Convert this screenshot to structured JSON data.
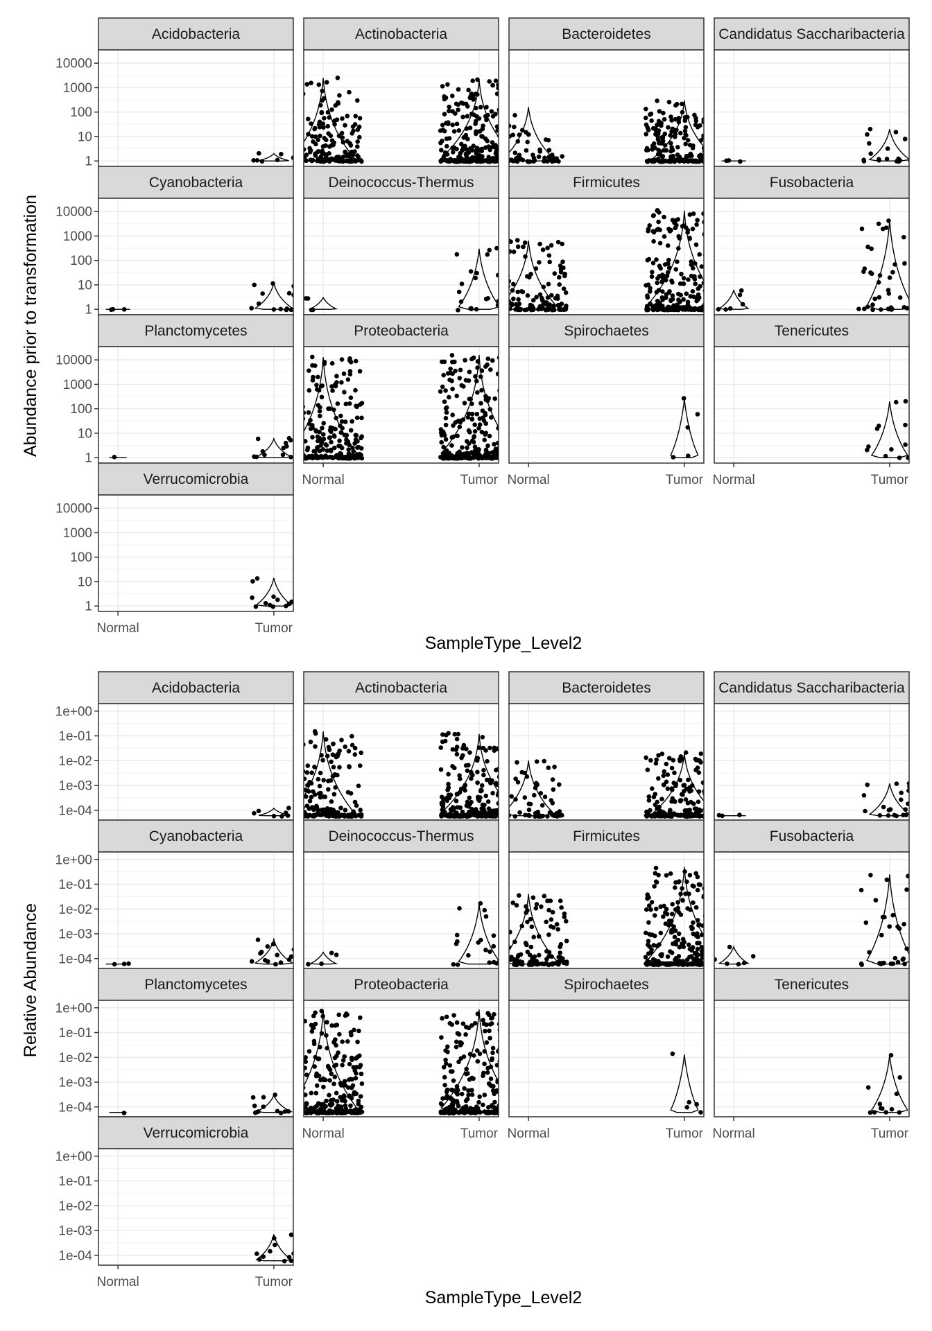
{
  "chart_data": [
    {
      "type": "violin",
      "ylabel": "Abundance prior to transformation",
      "xlabel": "SampleType_Level2",
      "y_scale": "log10",
      "y_ticks": [
        "1",
        "10",
        "100",
        "1000",
        "10000"
      ],
      "ylim": [
        0.6,
        35000
      ],
      "categories": [
        "Normal",
        "Tumor"
      ],
      "grid": true,
      "point_size_note": "jittered points with violin outlines",
      "panels": [
        {
          "name": "Acidobacteria",
          "Normal": null,
          "Tumor": {
            "min": 1,
            "max": 2,
            "n": 7
          }
        },
        {
          "name": "Actinobacteria",
          "Normal": {
            "min": 1,
            "max": 2500,
            "n": 220
          },
          "Tumor": {
            "min": 1,
            "max": 2200,
            "n": 900
          }
        },
        {
          "name": "Bacteroidetes",
          "Normal": {
            "min": 1,
            "max": 160,
            "n": 70
          },
          "Tumor": {
            "min": 1,
            "max": 300,
            "n": 260
          }
        },
        {
          "name": "Candidatus Saccharibacteria",
          "Normal": {
            "min": 1,
            "max": 1,
            "n": 3
          },
          "Tumor": {
            "min": 1,
            "max": 20,
            "n": 22
          }
        },
        {
          "name": "Cyanobacteria",
          "Normal": {
            "min": 1,
            "max": 1,
            "n": 3
          },
          "Tumor": {
            "min": 1,
            "max": 12,
            "n": 16
          }
        },
        {
          "name": "Deinococcus-Thermus",
          "Normal": {
            "min": 1,
            "max": 3,
            "n": 4
          },
          "Tumor": {
            "min": 1,
            "max": 300,
            "n": 24
          }
        },
        {
          "name": "Firmicutes",
          "Normal": {
            "min": 1,
            "max": 650,
            "n": 140
          },
          "Tumor": {
            "min": 1,
            "max": 11000,
            "n": 850
          }
        },
        {
          "name": "Fusobacteria",
          "Normal": {
            "min": 1,
            "max": 6,
            "n": 6
          },
          "Tumor": {
            "min": 1,
            "max": 4500,
            "n": 40
          }
        },
        {
          "name": "Planctomycetes",
          "Normal": {
            "min": 1,
            "max": 1,
            "n": 1
          },
          "Tumor": {
            "min": 1,
            "max": 6,
            "n": 12
          }
        },
        {
          "name": "Proteobacteria",
          "Normal": {
            "min": 1,
            "max": 13000,
            "n": 420
          },
          "Tumor": {
            "min": 1,
            "max": 16000,
            "n": 1400
          }
        },
        {
          "name": "Spirochaetes",
          "Normal": null,
          "Tumor": {
            "min": 1,
            "max": 250,
            "n": 5
          }
        },
        {
          "name": "Tenericutes",
          "Normal": null,
          "Tumor": {
            "min": 1,
            "max": 200,
            "n": 14
          }
        },
        {
          "name": "Verrucomicrobia",
          "Normal": null,
          "Tumor": {
            "min": 1,
            "max": 14,
            "n": 12
          }
        }
      ]
    },
    {
      "type": "violin",
      "ylabel": "Relative Abundance",
      "xlabel": "SampleType_Level2",
      "y_scale": "log10",
      "y_ticks": [
        "1e-04",
        "1e-03",
        "1e-02",
        "1e-01",
        "1e+00"
      ],
      "ylim": [
        4e-05,
        2
      ],
      "categories": [
        "Normal",
        "Tumor"
      ],
      "grid": true,
      "panels": [
        {
          "name": "Acidobacteria",
          "Normal": null,
          "Tumor": {
            "min": 6e-05,
            "max": 0.00012,
            "n": 7
          }
        },
        {
          "name": "Actinobacteria",
          "Normal": {
            "min": 6e-05,
            "max": 0.15,
            "n": 220
          },
          "Tumor": {
            "min": 6e-05,
            "max": 0.12,
            "n": 900
          }
        },
        {
          "name": "Bacteroidetes",
          "Normal": {
            "min": 6e-05,
            "max": 0.01,
            "n": 70
          },
          "Tumor": {
            "min": 6e-05,
            "max": 0.02,
            "n": 260
          }
        },
        {
          "name": "Candidatus Saccharibacteria",
          "Normal": {
            "min": 6e-05,
            "max": 6e-05,
            "n": 3
          },
          "Tumor": {
            "min": 6e-05,
            "max": 0.0012,
            "n": 22
          }
        },
        {
          "name": "Cyanobacteria",
          "Normal": {
            "min": 6e-05,
            "max": 6e-05,
            "n": 3
          },
          "Tumor": {
            "min": 6e-05,
            "max": 0.0006,
            "n": 16
          }
        },
        {
          "name": "Deinococcus-Thermus",
          "Normal": {
            "min": 6e-05,
            "max": 0.00018,
            "n": 4
          },
          "Tumor": {
            "min": 6e-05,
            "max": 0.016,
            "n": 24
          }
        },
        {
          "name": "Firmicutes",
          "Normal": {
            "min": 6e-05,
            "max": 0.04,
            "n": 140
          },
          "Tumor": {
            "min": 6e-05,
            "max": 0.5,
            "n": 850
          }
        },
        {
          "name": "Fusobacteria",
          "Normal": {
            "min": 6e-05,
            "max": 0.0003,
            "n": 6
          },
          "Tumor": {
            "min": 6e-05,
            "max": 0.25,
            "n": 40
          }
        },
        {
          "name": "Planctomycetes",
          "Normal": {
            "min": 6e-05,
            "max": 6e-05,
            "n": 1
          },
          "Tumor": {
            "min": 6e-05,
            "max": 0.0003,
            "n": 12
          }
        },
        {
          "name": "Proteobacteria",
          "Normal": {
            "min": 6e-05,
            "max": 0.8,
            "n": 420
          },
          "Tumor": {
            "min": 6e-05,
            "max": 0.85,
            "n": 1400
          }
        },
        {
          "name": "Spirochaetes",
          "Normal": null,
          "Tumor": {
            "min": 6e-05,
            "max": 0.013,
            "n": 5
          }
        },
        {
          "name": "Tenericutes",
          "Normal": null,
          "Tumor": {
            "min": 6e-05,
            "max": 0.012,
            "n": 14
          }
        },
        {
          "name": "Verrucomicrobia",
          "Normal": null,
          "Tumor": {
            "min": 6e-05,
            "max": 0.0007,
            "n": 12
          }
        }
      ]
    }
  ]
}
